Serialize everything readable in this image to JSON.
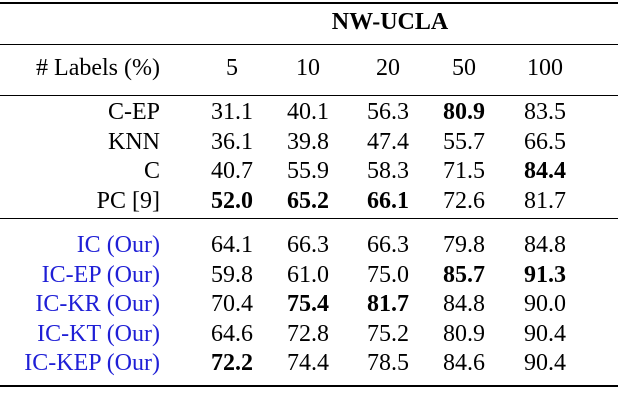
{
  "table": {
    "group_header": "NW-UCLA",
    "header": {
      "label": "# Labels (%)",
      "columns": [
        "5",
        "10",
        "20",
        "50",
        "100"
      ]
    },
    "groups": [
      {
        "color": "#000000",
        "rows": [
          {
            "label": "C-EP",
            "cells": [
              "31.1",
              "40.1",
              "56.3",
              "80.9",
              "83.5"
            ],
            "bold": [
              3
            ]
          },
          {
            "label": "KNN",
            "cells": [
              "36.1",
              "39.8",
              "47.4",
              "55.7",
              "66.5"
            ],
            "bold": []
          },
          {
            "label": "C",
            "cells": [
              "40.7",
              "55.9",
              "58.3",
              "71.5",
              "84.4"
            ],
            "bold": [
              4
            ]
          },
          {
            "label": "PC [9]",
            "cells": [
              "52.0",
              "65.2",
              "66.1",
              "72.6",
              "81.7"
            ],
            "bold": [
              0,
              1,
              2
            ]
          }
        ]
      },
      {
        "color": "#1f1fd6",
        "rows": [
          {
            "label": "IC (Our)",
            "cells": [
              "64.1",
              "66.3",
              "66.3",
              "79.8",
              "84.8"
            ],
            "bold": []
          },
          {
            "label": "IC-EP (Our)",
            "cells": [
              "59.8",
              "61.0",
              "75.0",
              "85.7",
              "91.3"
            ],
            "bold": [
              3,
              4
            ]
          },
          {
            "label": "IC-KR (Our)",
            "cells": [
              "70.4",
              "75.4",
              "81.7",
              "84.8",
              "90.0"
            ],
            "bold": [
              1,
              2
            ]
          },
          {
            "label": "IC-KT (Our)",
            "cells": [
              "64.6",
              "72.8",
              "75.2",
              "80.9",
              "90.4"
            ],
            "bold": []
          },
          {
            "label": "IC-KEP (Our)",
            "cells": [
              "72.2",
              "74.4",
              "78.5",
              "84.6",
              "90.4"
            ],
            "bold": [
              0
            ]
          }
        ]
      }
    ]
  }
}
